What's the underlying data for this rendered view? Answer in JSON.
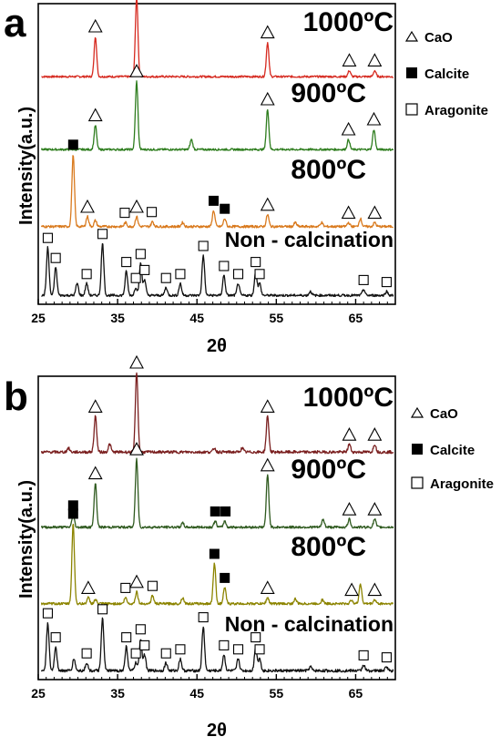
{
  "chart_data": [
    {
      "panel_letter": "a",
      "type": "line",
      "xlabel": "2θ",
      "ylabel": "Intensity(a.u.)",
      "xlim": [
        25,
        70
      ],
      "xticks": [
        25,
        35,
        45,
        55,
        65
      ],
      "grid": false,
      "legend_position": "right",
      "legend": [
        {
          "symbol": "triangle",
          "label": "CaO"
        },
        {
          "symbol": "filled-square",
          "label": "Calcite"
        },
        {
          "symbol": "open-square",
          "label": "Aragonite"
        }
      ],
      "series": [
        {
          "name": "1000ºC",
          "color": "#d62a20",
          "baseline": 0.2,
          "noise": 0.5,
          "peaks": [
            [
              32.2,
              10
            ],
            [
              37.4,
              20
            ],
            [
              53.9,
              8.5
            ],
            [
              64.2,
              1.5
            ],
            [
              67.4,
              1.5
            ]
          ],
          "markers": [
            [
              32.2,
              "triangle"
            ],
            [
              37.4,
              "triangle"
            ],
            [
              53.9,
              "triangle"
            ],
            [
              64.2,
              "triangle"
            ],
            [
              67.4,
              "triangle"
            ]
          ]
        },
        {
          "name": "900ºC",
          "color": "#2e7d1e",
          "baseline": 0.2,
          "noise": 0.5,
          "peaks": [
            [
              32.2,
              6
            ],
            [
              37.4,
              17
            ],
            [
              44.3,
              2.5
            ],
            [
              53.9,
              10
            ],
            [
              64.1,
              2.5
            ],
            [
              67.3,
              5
            ]
          ],
          "markers": [
            [
              32.2,
              "triangle"
            ],
            [
              37.4,
              "triangle"
            ],
            [
              53.9,
              "triangle"
            ],
            [
              64.1,
              "triangle"
            ],
            [
              67.3,
              "triangle"
            ]
          ]
        },
        {
          "name": "800ºC",
          "color": "#d97a1e",
          "baseline": 0.3,
          "noise": 0.6,
          "peaks": [
            [
              29.4,
              18
            ],
            [
              31.2,
              2.5
            ],
            [
              32.2,
              1.5
            ],
            [
              36.0,
              1
            ],
            [
              37.4,
              2.5
            ],
            [
              39.4,
              1.2
            ],
            [
              43.2,
              1
            ],
            [
              47.1,
              4
            ],
            [
              48.5,
              2
            ],
            [
              53.9,
              3
            ],
            [
              57.4,
              1
            ],
            [
              60.7,
              1
            ],
            [
              64.1,
              1
            ],
            [
              65.6,
              2
            ],
            [
              67.4,
              1
            ]
          ],
          "markers": [
            [
              29.4,
              "filled-square"
            ],
            [
              31.2,
              "triangle"
            ],
            [
              35.9,
              "open-square"
            ],
            [
              37.4,
              "triangle"
            ],
            [
              39.3,
              "open-square"
            ],
            [
              47.1,
              "filled-square"
            ],
            [
              48.5,
              "filled-square"
            ],
            [
              53.9,
              "triangle"
            ],
            [
              64.1,
              "triangle"
            ],
            [
              67.4,
              "triangle"
            ]
          ]
        },
        {
          "name": "Non - calcination",
          "color": "#111111",
          "baseline": 0.4,
          "noise": 0.6,
          "peaks": [
            [
              26.2,
              12
            ],
            [
              27.2,
              7
            ],
            [
              29.9,
              3
            ],
            [
              31.1,
              3
            ],
            [
              33.1,
              13
            ],
            [
              36.1,
              6
            ],
            [
              37.3,
              2
            ],
            [
              37.9,
              8
            ],
            [
              38.4,
              4
            ],
            [
              41.1,
              2
            ],
            [
              42.9,
              3
            ],
            [
              45.8,
              10
            ],
            [
              48.4,
              5
            ],
            [
              50.2,
              3
            ],
            [
              52.4,
              6
            ],
            [
              52.9,
              3
            ],
            [
              59.3,
              1
            ],
            [
              66.0,
              1.5
            ],
            [
              68.9,
              1
            ]
          ],
          "markers": [
            [
              26.2,
              "open-square"
            ],
            [
              27.2,
              "open-square"
            ],
            [
              31.1,
              "open-square"
            ],
            [
              33.1,
              "open-square"
            ],
            [
              36.1,
              "open-square"
            ],
            [
              37.3,
              "open-square"
            ],
            [
              37.9,
              "open-square"
            ],
            [
              38.4,
              "open-square"
            ],
            [
              41.1,
              "open-square"
            ],
            [
              42.9,
              "open-square"
            ],
            [
              45.8,
              "open-square"
            ],
            [
              48.4,
              "open-square"
            ],
            [
              50.2,
              "open-square"
            ],
            [
              52.4,
              "open-square"
            ],
            [
              52.9,
              "open-square"
            ],
            [
              66.0,
              "open-square"
            ],
            [
              68.9,
              "open-square"
            ]
          ]
        }
      ]
    },
    {
      "panel_letter": "b",
      "type": "line",
      "xlabel": "2θ",
      "ylabel": "Intensity(a.u.)",
      "xlim": [
        25,
        70
      ],
      "xticks": [
        25,
        35,
        45,
        55,
        65
      ],
      "grid": false,
      "legend_position": "right",
      "legend": [
        {
          "symbol": "triangle",
          "label": "CaO"
        },
        {
          "symbol": "filled-square",
          "label": "Calcite"
        },
        {
          "symbol": "open-square",
          "label": "Aragonite"
        }
      ],
      "series": [
        {
          "name": "1000ºC",
          "color": "#7a1f1f",
          "baseline": 0.4,
          "noise": 0.7,
          "peaks": [
            [
              28.8,
              1
            ],
            [
              32.2,
              9
            ],
            [
              34.0,
              2
            ],
            [
              37.4,
              20
            ],
            [
              47.2,
              1
            ],
            [
              50.7,
              1
            ],
            [
              53.9,
              9
            ],
            [
              64.2,
              2
            ],
            [
              67.4,
              2
            ]
          ],
          "markers": [
            [
              32.2,
              "triangle"
            ],
            [
              37.4,
              "triangle"
            ],
            [
              53.9,
              "triangle"
            ],
            [
              64.2,
              "triangle"
            ],
            [
              67.4,
              "triangle"
            ]
          ]
        },
        {
          "name": "900ºC",
          "color": "#2f5a1f",
          "baseline": 0.3,
          "noise": 0.6,
          "peaks": [
            [
              29.4,
              3
            ],
            [
              32.2,
              11
            ],
            [
              37.4,
              17
            ],
            [
              43.2,
              1
            ],
            [
              47.3,
              1.5
            ],
            [
              48.5,
              1.5
            ],
            [
              53.9,
              13
            ],
            [
              60.9,
              2
            ],
            [
              64.2,
              2
            ],
            [
              67.4,
              2
            ]
          ],
          "markers": [
            [
              29.4,
              "filled-square"
            ],
            [
              32.2,
              "triangle"
            ],
            [
              37.4,
              "triangle"
            ],
            [
              47.3,
              "filled-square"
            ],
            [
              48.6,
              "filled-square"
            ],
            [
              53.9,
              "triangle"
            ],
            [
              64.2,
              "triangle"
            ],
            [
              67.4,
              "triangle"
            ]
          ]
        },
        {
          "name": "800ºC",
          "color": "#8c8400",
          "baseline": 0.3,
          "noise": 0.6,
          "peaks": [
            [
              29.4,
              20
            ],
            [
              31.3,
              1.5
            ],
            [
              32.2,
              1
            ],
            [
              36.0,
              1.5
            ],
            [
              37.4,
              3
            ],
            [
              39.4,
              2
            ],
            [
              43.2,
              1.5
            ],
            [
              47.2,
              10
            ],
            [
              48.5,
              4
            ],
            [
              53.9,
              1.5
            ],
            [
              57.4,
              1.2
            ],
            [
              60.8,
              1
            ],
            [
              64.5,
              1
            ],
            [
              65.6,
              5
            ],
            [
              67.4,
              1
            ]
          ],
          "markers": [
            [
              29.4,
              "filled-square"
            ],
            [
              31.3,
              "triangle"
            ],
            [
              36.0,
              "open-square"
            ],
            [
              37.4,
              "triangle"
            ],
            [
              39.4,
              "open-square"
            ],
            [
              47.2,
              "filled-square"
            ],
            [
              48.5,
              "filled-square"
            ],
            [
              53.9,
              "triangle"
            ],
            [
              64.5,
              "triangle"
            ],
            [
              67.4,
              "triangle"
            ]
          ]
        },
        {
          "name": "Non - calcination",
          "color": "#111111",
          "baseline": 0.4,
          "noise": 0.7,
          "peaks": [
            [
              26.2,
              12
            ],
            [
              27.2,
              6
            ],
            [
              29.5,
              3
            ],
            [
              31.1,
              2
            ],
            [
              33.1,
              13
            ],
            [
              36.1,
              6
            ],
            [
              37.3,
              2
            ],
            [
              37.9,
              8
            ],
            [
              38.4,
              4
            ],
            [
              41.1,
              2
            ],
            [
              42.9,
              3
            ],
            [
              45.8,
              11
            ],
            [
              48.4,
              4
            ],
            [
              50.2,
              3
            ],
            [
              52.4,
              6
            ],
            [
              52.9,
              3
            ],
            [
              59.3,
              1
            ],
            [
              66.0,
              1.5
            ],
            [
              68.9,
              1
            ]
          ],
          "markers": [
            [
              26.2,
              "open-square"
            ],
            [
              27.2,
              "open-square"
            ],
            [
              31.1,
              "open-square"
            ],
            [
              33.1,
              "open-square"
            ],
            [
              36.1,
              "open-square"
            ],
            [
              37.3,
              "open-square"
            ],
            [
              37.9,
              "open-square"
            ],
            [
              38.4,
              "open-square"
            ],
            [
              41.1,
              "open-square"
            ],
            [
              42.9,
              "open-square"
            ],
            [
              45.8,
              "open-square"
            ],
            [
              48.4,
              "open-square"
            ],
            [
              50.2,
              "open-square"
            ],
            [
              52.4,
              "open-square"
            ],
            [
              52.9,
              "open-square"
            ],
            [
              66.0,
              "open-square"
            ],
            [
              68.9,
              "open-square"
            ]
          ]
        }
      ]
    }
  ]
}
